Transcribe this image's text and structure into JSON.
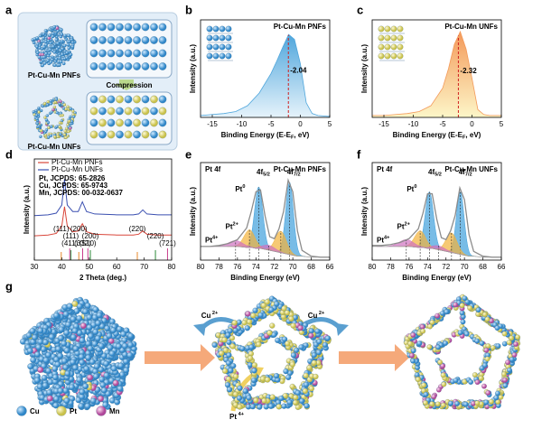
{
  "chart_data": [
    {
      "panel": "b",
      "type": "area",
      "title": "Pt-Cu-Mn PNFs",
      "xlabel": {
        "text": "Binding Energy (E-E",
        "sub": "F",
        "tail": ", eV)"
      },
      "ylabel": "Intensity (a.u.)",
      "x": [
        -17,
        -15,
        -13,
        -11,
        -9,
        -7,
        -5,
        -4,
        -3,
        -2,
        -1,
        0,
        1,
        2,
        3,
        5
      ],
      "values": [
        0.02,
        0.03,
        0.04,
        0.06,
        0.12,
        0.25,
        0.45,
        0.58,
        0.72,
        0.85,
        0.8,
        0.55,
        0.15,
        0.04,
        0.02,
        0.01
      ],
      "color": "#4fa6dc",
      "xlim": [
        -17,
        5
      ],
      "ylim": [
        0,
        1
      ],
      "xticks": [
        -15,
        -10,
        -5,
        0,
        5
      ],
      "annotation": {
        "text": "-2.04",
        "x": -2.04
      }
    },
    {
      "panel": "c",
      "type": "area",
      "title": "Pt-Cu-Mn  UNFs",
      "xlabel": {
        "text": "Binding Energy (E-E",
        "sub": "F",
        "tail": ", eV)"
      },
      "ylabel": "Intensity (a.u.)",
      "x": [
        -17,
        -15,
        -13,
        -11,
        -9,
        -7,
        -5,
        -4,
        -3,
        -2,
        -1,
        0,
        1,
        2,
        3,
        5
      ],
      "values": [
        0.02,
        0.02,
        0.03,
        0.04,
        0.06,
        0.12,
        0.3,
        0.5,
        0.75,
        0.88,
        0.7,
        0.4,
        0.08,
        0.03,
        0.02,
        0.02
      ],
      "color": "#f39a5a",
      "xlim": [
        -17,
        5
      ],
      "ylim": [
        0,
        1
      ],
      "xticks": [
        -15,
        -10,
        -5,
        0,
        5
      ],
      "annotation": {
        "text": "-2.32",
        "x": -2.32
      }
    },
    {
      "panel": "d",
      "type": "line",
      "xlabel": "2 Theta (deg.)",
      "ylabel": "Intensity (a.u.)",
      "x": [
        30,
        35,
        38,
        40,
        41,
        42,
        44,
        46,
        47.5,
        49,
        52,
        60,
        66,
        68,
        69.5,
        71,
        75,
        80
      ],
      "series": [
        {
          "name": "Pt-Cu-Mn PNFs",
          "color": "#d9463a",
          "values": [
            0.3,
            0.31,
            0.33,
            0.42,
            0.66,
            0.42,
            0.35,
            0.36,
            0.45,
            0.35,
            0.32,
            0.31,
            0.31,
            0.32,
            0.36,
            0.32,
            0.31,
            0.31
          ]
        },
        {
          "name": "Pt-Cu-Mn UNFs",
          "color": "#3a4fb0",
          "values": [
            0.55,
            0.56,
            0.58,
            0.68,
            1.0,
            0.68,
            0.6,
            0.6,
            0.72,
            0.6,
            0.57,
            0.56,
            0.56,
            0.57,
            0.62,
            0.57,
            0.56,
            0.56
          ]
        }
      ],
      "references": [
        {
          "name": "Pt, JCPDS: 65-2826",
          "color": "#e8892b",
          "peaks": [
            {
              "x": 39.8,
              "label": "(111)"
            },
            {
              "x": 46.2,
              "label": "(200)"
            },
            {
              "x": 67.5,
              "label": "(220)"
            }
          ]
        },
        {
          "name": "Cu, JCPDS: 65-9743",
          "color": "#2e8b3a",
          "peaks": [
            {
              "x": 43.3,
              "label": "(111)"
            },
            {
              "x": 50.4,
              "label": "(200)"
            },
            {
              "x": 74.1,
              "label": "(220)"
            }
          ]
        },
        {
          "name": "Mn, JCPDS: 00-032-0637",
          "color": "#c83c8c",
          "peaks": [
            {
              "x": 42.9,
              "label": "(411)"
            },
            {
              "x": 47.6,
              "label": "(332)"
            },
            {
              "x": 49.5,
              "label": "(510)"
            },
            {
              "x": 78.5,
              "label": "(721)"
            }
          ]
        }
      ],
      "xlim": [
        30,
        80
      ],
      "ylim": [
        0,
        1.25
      ],
      "xticks": [
        30,
        40,
        50,
        60,
        70,
        80
      ]
    },
    {
      "panel": "e",
      "type": "line",
      "label": "Pt 4f",
      "title": "Pt-Cu-Mn PNFs",
      "xlabel": "Binding Energy (eV)",
      "ylabel": "Intensity (a.u.)",
      "x": [
        80,
        79,
        78,
        77,
        76,
        75,
        74.5,
        74,
        73.5,
        73,
        72.5,
        72,
        71.5,
        71,
        70.5,
        70,
        69.5,
        69,
        68,
        67,
        66
      ],
      "values": [
        0.14,
        0.14,
        0.15,
        0.17,
        0.21,
        0.33,
        0.5,
        0.7,
        0.72,
        0.45,
        0.24,
        0.22,
        0.32,
        0.5,
        0.82,
        0.7,
        0.3,
        0.1,
        0.04,
        0.03,
        0.03
      ],
      "background": [
        0.14,
        0.14,
        0.14,
        0.14,
        0.14,
        0.13,
        0.13,
        0.12,
        0.12,
        0.11,
        0.1,
        0.09,
        0.08,
        0.07,
        0.06,
        0.05,
        0.04,
        0.04,
        0.03,
        0.03,
        0.03
      ],
      "color": "#8c8c8c",
      "components": [
        {
          "center": 70.35,
          "height": 0.74,
          "width": 0.42,
          "color": "#3fa0dc"
        },
        {
          "center": 73.7,
          "height": 0.63,
          "width": 0.45,
          "color": "#3fa0dc"
        },
        {
          "center": 71.3,
          "height": 0.22,
          "width": 0.6,
          "color": "#f2b23a"
        },
        {
          "center": 74.7,
          "height": 0.18,
          "width": 0.6,
          "color": "#f2b23a"
        },
        {
          "center": 72.6,
          "height": 0.05,
          "width": 0.7,
          "color": "#d070c0"
        },
        {
          "center": 76.2,
          "height": 0.06,
          "width": 0.8,
          "color": "#d070c0"
        }
      ],
      "annotations": [
        {
          "text": "Pt",
          "sup": "0"
        },
        {
          "text": "4f",
          "sub": "5/2"
        },
        {
          "text": "4f",
          "sub": "7/2"
        },
        {
          "text": "Pt",
          "sup": "2+"
        },
        {
          "text": "Pt",
          "sup": "4+"
        }
      ],
      "xlim": [
        80,
        66
      ],
      "ylim": [
        0,
        1
      ],
      "xticks": [
        80,
        78,
        76,
        74,
        72,
        70,
        68,
        66
      ]
    },
    {
      "panel": "f",
      "type": "line",
      "label": "Pt 4f",
      "title": "Pt-Cu-Mn  UNFs",
      "xlabel": "Binding Energy (eV)",
      "ylabel": "Intensity (a.u.)",
      "x": [
        80,
        79,
        78,
        77,
        76,
        75,
        74.5,
        74,
        73.5,
        73,
        72.5,
        72,
        71.5,
        71,
        70.5,
        70,
        69.5,
        69,
        68,
        67,
        66
      ],
      "values": [
        0.15,
        0.15,
        0.16,
        0.18,
        0.22,
        0.32,
        0.48,
        0.68,
        0.68,
        0.42,
        0.23,
        0.21,
        0.3,
        0.46,
        0.74,
        0.62,
        0.26,
        0.09,
        0.04,
        0.03,
        0.03
      ],
      "background": [
        0.14,
        0.14,
        0.14,
        0.14,
        0.14,
        0.13,
        0.13,
        0.12,
        0.12,
        0.11,
        0.1,
        0.09,
        0.08,
        0.07,
        0.06,
        0.05,
        0.04,
        0.04,
        0.03,
        0.03,
        0.03
      ],
      "color": "#8c8c8c",
      "components": [
        {
          "center": 70.45,
          "height": 0.64,
          "width": 0.42,
          "color": "#3fa0dc"
        },
        {
          "center": 73.8,
          "height": 0.58,
          "width": 0.45,
          "color": "#3fa0dc"
        },
        {
          "center": 71.4,
          "height": 0.2,
          "width": 0.6,
          "color": "#f2b23a"
        },
        {
          "center": 74.8,
          "height": 0.17,
          "width": 0.6,
          "color": "#f2b23a"
        },
        {
          "center": 72.8,
          "height": 0.04,
          "width": 0.7,
          "color": "#d070c0"
        },
        {
          "center": 76.3,
          "height": 0.07,
          "width": 0.8,
          "color": "#d070c0"
        }
      ],
      "annotations": [
        {
          "text": "Pt",
          "sup": "0"
        },
        {
          "text": "4f",
          "sub": "5/2"
        },
        {
          "text": "4f",
          "sub": "7/2"
        },
        {
          "text": "Pt",
          "sup": "2+"
        },
        {
          "text": "Pt",
          "sup": "4+"
        }
      ],
      "xlim": [
        80,
        66
      ],
      "ylim": [
        0,
        1
      ],
      "xticks": [
        80,
        78,
        76,
        74,
        72,
        70,
        68,
        66
      ]
    }
  ],
  "panels": {
    "a": {
      "label": "a",
      "top_caption": "Pt-Cu-Mn PNFs",
      "arrow": "Compression",
      "bottom_caption": "Pt-Cu-Mn UNFs"
    },
    "g": {
      "label": "g",
      "ions": [
        {
          "text": "Cu",
          "sup": " 2+"
        },
        {
          "text": "Cu",
          "sup": " 2+"
        },
        {
          "text": "Pt",
          "sup": " 4+"
        }
      ],
      "legend": [
        "Cu",
        "Pt",
        "Mn"
      ]
    }
  }
}
